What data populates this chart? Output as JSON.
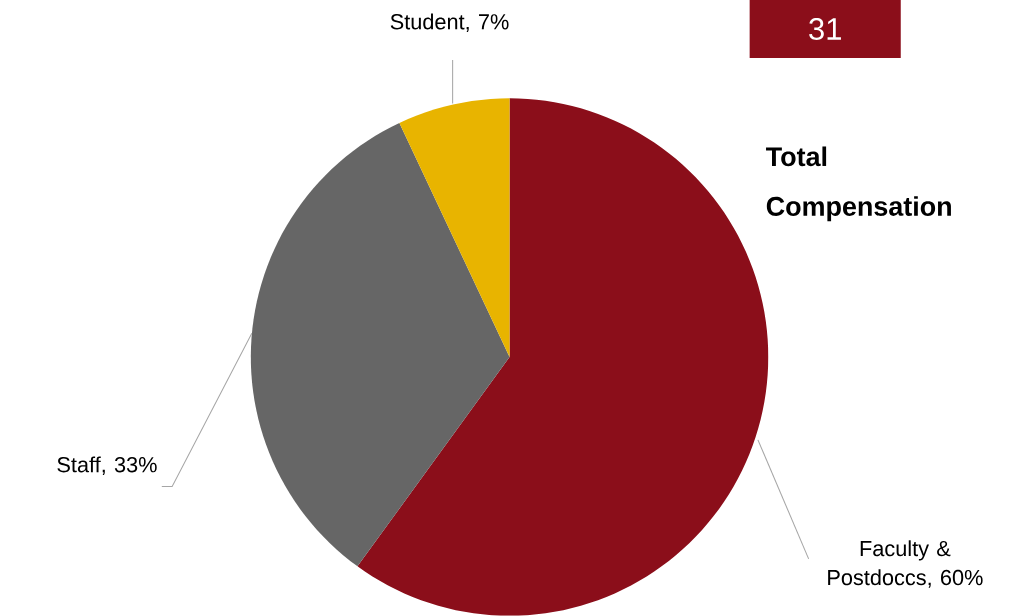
{
  "chart_data": {
    "type": "pie",
    "title": "Total Compensation",
    "categories": [
      "Faculty & Postdoccs",
      "Staff",
      "Student"
    ],
    "values": [
      60,
      33,
      7
    ],
    "colors": [
      "#8b0e1a",
      "#666666",
      "#e8b400"
    ],
    "value_labels": [
      ", 60%",
      ", 33%",
      ", 7%"
    ],
    "data_labels": true,
    "annotations": [
      "31"
    ]
  }
}
